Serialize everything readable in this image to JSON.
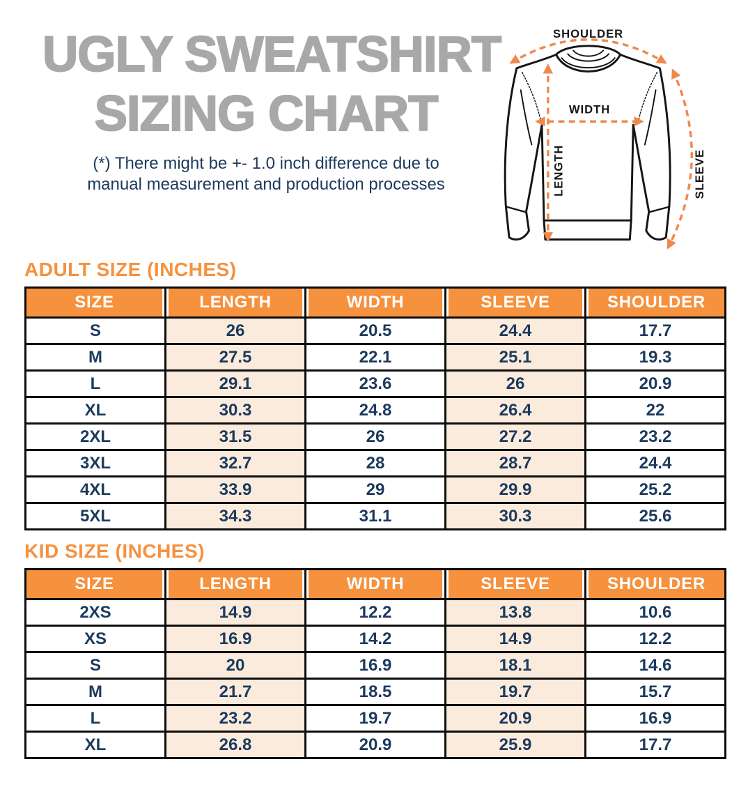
{
  "header": {
    "title_line1": "UGLY SWEATSHIRT",
    "title_line2": "SIZING CHART",
    "disclaimer_line1": "(*) There might be +- 1.0 inch difference due to",
    "disclaimer_line2": "manual measurement and production processes"
  },
  "diagram": {
    "shoulder_label": "SHOULDER",
    "width_label": "WIDTH",
    "length_label": "LENGTH",
    "sleeve_label": "SLEEVE"
  },
  "colors": {
    "accent_orange": "#f6913d",
    "arrow_orange": "#f0884b",
    "peach_cell": "#faebdc",
    "navy_text": "#1c3a5e",
    "title_gray": "#a8a8a8",
    "border_black": "#0d0d0d"
  },
  "adult_table": {
    "heading": "ADULT SIZE (INCHES)",
    "columns": [
      "SIZE",
      "LENGTH",
      "WIDTH",
      "SLEEVE",
      "SHOULDER"
    ],
    "rows": [
      [
        "S",
        "26",
        "20.5",
        "24.4",
        "17.7"
      ],
      [
        "M",
        "27.5",
        "22.1",
        "25.1",
        "19.3"
      ],
      [
        "L",
        "29.1",
        "23.6",
        "26",
        "20.9"
      ],
      [
        "XL",
        "30.3",
        "24.8",
        "26.4",
        "22"
      ],
      [
        "2XL",
        "31.5",
        "26",
        "27.2",
        "23.2"
      ],
      [
        "3XL",
        "32.7",
        "28",
        "28.7",
        "24.4"
      ],
      [
        "4XL",
        "33.9",
        "29",
        "29.9",
        "25.2"
      ],
      [
        "5XL",
        "34.3",
        "31.1",
        "30.3",
        "25.6"
      ]
    ]
  },
  "kid_table": {
    "heading": "KID SIZE (INCHES)",
    "columns": [
      "SIZE",
      "LENGTH",
      "WIDTH",
      "SLEEVE",
      "SHOULDER"
    ],
    "rows": [
      [
        "2XS",
        "14.9",
        "12.2",
        "13.8",
        "10.6"
      ],
      [
        "XS",
        "16.9",
        "14.2",
        "14.9",
        "12.2"
      ],
      [
        "S",
        "20",
        "16.9",
        "18.1",
        "14.6"
      ],
      [
        "M",
        "21.7",
        "18.5",
        "19.7",
        "15.7"
      ],
      [
        "L",
        "23.2",
        "19.7",
        "20.9",
        "16.9"
      ],
      [
        "XL",
        "26.8",
        "20.9",
        "25.9",
        "17.7"
      ]
    ]
  }
}
